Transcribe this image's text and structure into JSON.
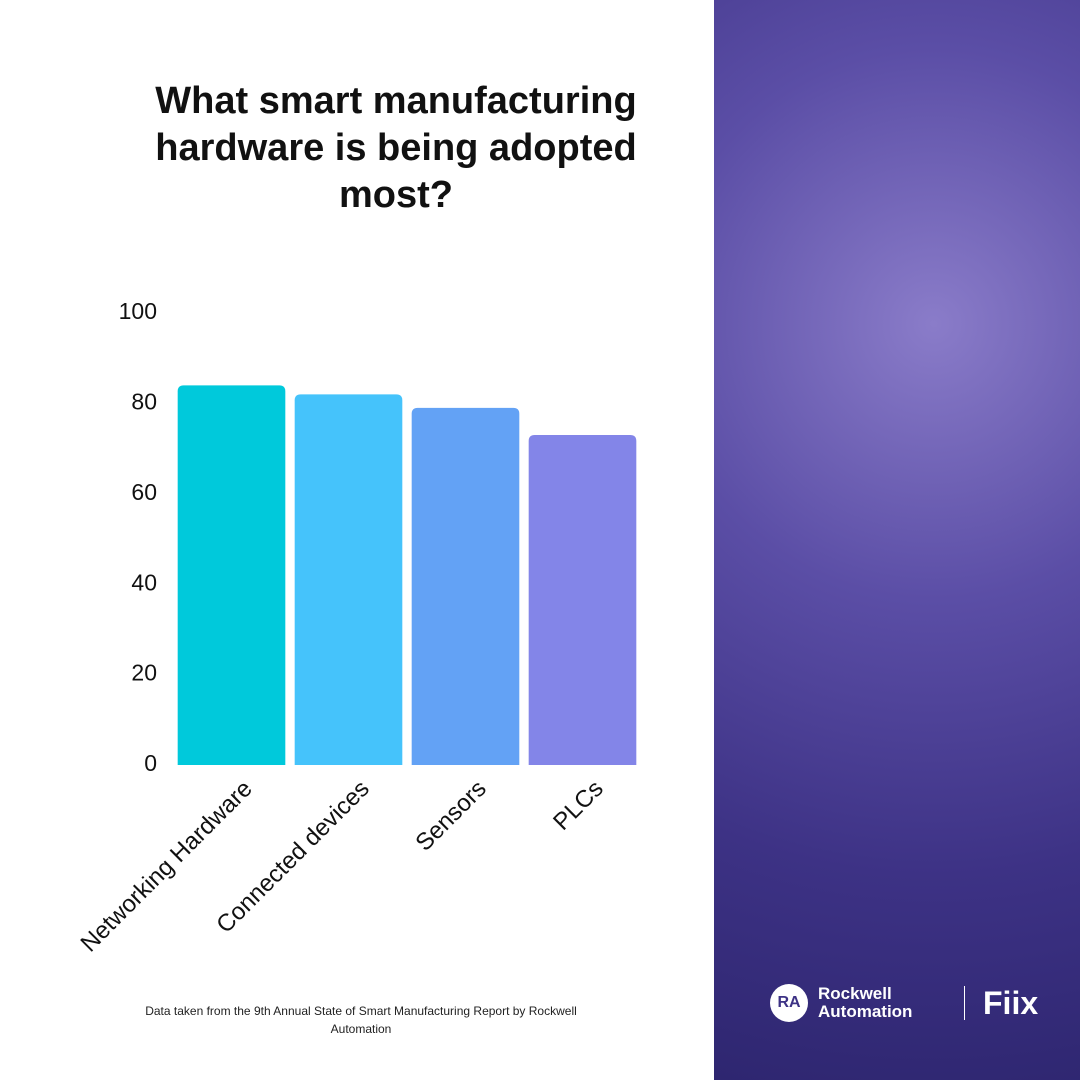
{
  "chart_data": {
    "type": "bar",
    "title": "What smart manufacturing hardware is being adopted most?",
    "categories": [
      "Networking Hardware",
      "Connected devices",
      "Sensors",
      "PLCs"
    ],
    "values": [
      84,
      82,
      79,
      73
    ],
    "colors": [
      "#00c9db",
      "#45c3fb",
      "#63a2f5",
      "#8385e8"
    ],
    "ylim": [
      0,
      100
    ],
    "yticks": [
      0,
      20,
      40,
      60,
      80,
      100
    ],
    "grid": false,
    "source": "Data taken from the 9th Annual State of Smart Manufacturing Report by Rockwell Automation"
  },
  "branding": {
    "badge": "RA",
    "company": "Rockwell Automation",
    "product": "Fiix"
  }
}
